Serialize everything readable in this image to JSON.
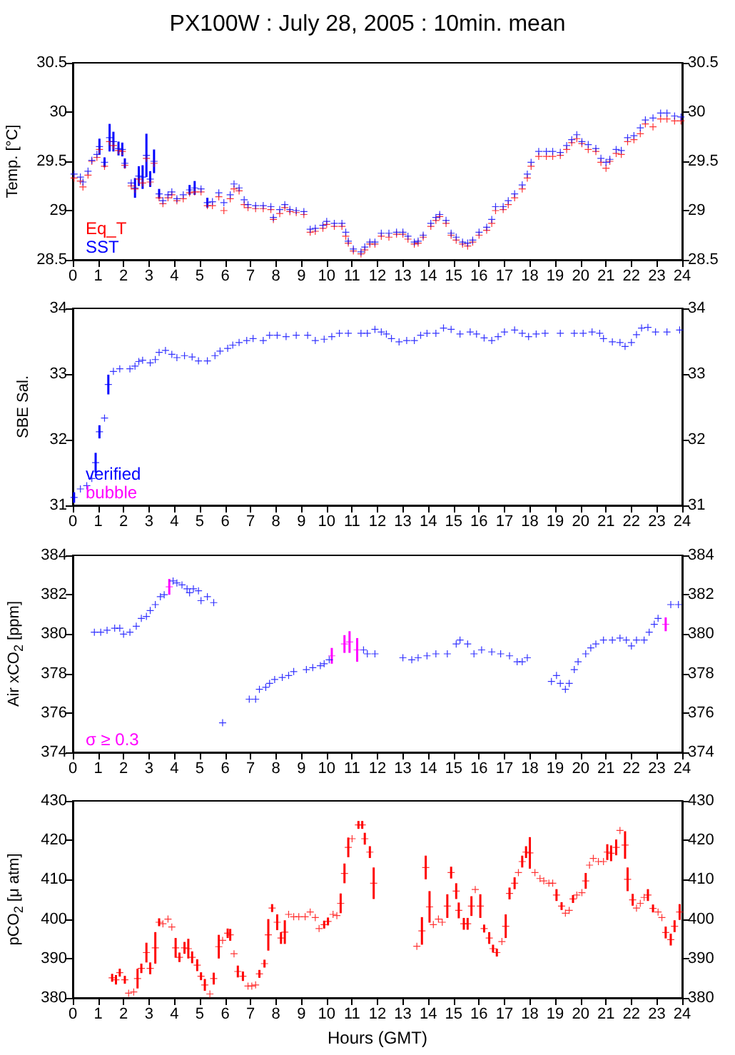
{
  "chart_data": [
    {
      "type": "scatter",
      "title": "PX100W : July 28, 2005 : 10min. mean",
      "ylabel": "Temp. [°C]",
      "marker": "cross",
      "grid": false,
      "legend": "bottom left",
      "xlim": [
        0,
        24
      ],
      "xticks": [
        0,
        1,
        2,
        3,
        4,
        5,
        6,
        7,
        8,
        9,
        10,
        11,
        12,
        13,
        14,
        15,
        16,
        17,
        18,
        19,
        20,
        21,
        22,
        23,
        24
      ],
      "ylim": [
        28.5,
        30.5
      ],
      "yticks": [
        28.5,
        29,
        29.5,
        30,
        30.5
      ],
      "y2lim": [
        28.5,
        30.5
      ],
      "y2ticks": [
        28.5,
        29,
        29.5,
        30,
        30.5
      ],
      "x": [
        0.05,
        0.3,
        0.4,
        0.6,
        0.75,
        0.95,
        1.05,
        1.25,
        1.45,
        1.6,
        1.8,
        1.95,
        2.05,
        2.3,
        2.45,
        2.6,
        2.75,
        2.9,
        3.05,
        3.2,
        3.4,
        3.55,
        3.75,
        3.9,
        4.1,
        4.35,
        4.6,
        4.8,
        5.05,
        5.3,
        5.5,
        5.75,
        5.95,
        6.2,
        6.35,
        6.55,
        6.75,
        6.9,
        7.2,
        7.5,
        7.8,
        7.9,
        8.15,
        8.35,
        8.55,
        8.8,
        9.1,
        9.35,
        9.55,
        9.85,
        10.0,
        10.3,
        10.6,
        10.75,
        10.85,
        11.05,
        11.35,
        11.5,
        11.7,
        11.9,
        12.15,
        12.45,
        12.75,
        13.0,
        13.2,
        13.45,
        13.6,
        13.8,
        14.1,
        14.3,
        14.45,
        14.7,
        14.9,
        15.1,
        15.35,
        15.55,
        15.75,
        16.0,
        16.3,
        16.5,
        16.65,
        16.95,
        17.15,
        17.4,
        17.7,
        17.9,
        18.05,
        18.35,
        18.65,
        18.9,
        19.2,
        19.45,
        19.65,
        19.85,
        20.05,
        20.3,
        20.6,
        20.8,
        21.0,
        21.15,
        21.4,
        21.6,
        21.85,
        22.1,
        22.35,
        22.55,
        22.85,
        23.15,
        23.4,
        23.7,
        23.95
      ],
      "series": [
        {
          "name": "Eq_T",
          "color": "#ff0000",
          "values": [
            29.33,
            29.3,
            29.24,
            29.36,
            29.5,
            29.54,
            29.62,
            29.45,
            29.7,
            29.66,
            29.61,
            29.6,
            29.46,
            29.25,
            29.22,
            29.32,
            29.28,
            29.53,
            29.29,
            29.48,
            29.13,
            29.07,
            29.13,
            29.16,
            29.1,
            29.12,
            29.18,
            29.19,
            29.19,
            29.05,
            29.05,
            29.14,
            29.0,
            29.12,
            29.22,
            29.2,
            29.06,
            29.03,
            29.02,
            29.02,
            29.01,
            28.91,
            28.97,
            29.03,
            28.99,
            28.98,
            28.96,
            28.78,
            28.79,
            28.82,
            28.86,
            28.84,
            28.84,
            28.74,
            28.67,
            28.59,
            28.56,
            28.6,
            28.66,
            28.66,
            28.74,
            28.73,
            28.76,
            28.76,
            28.71,
            28.66,
            28.67,
            28.73,
            28.84,
            28.9,
            28.94,
            28.87,
            28.75,
            28.7,
            28.66,
            28.64,
            28.68,
            28.75,
            28.8,
            28.87,
            29.0,
            29.01,
            29.06,
            29.13,
            29.22,
            29.33,
            29.45,
            29.55,
            29.55,
            29.55,
            29.56,
            29.62,
            29.69,
            29.73,
            29.68,
            29.62,
            29.6,
            29.49,
            29.43,
            29.5,
            29.58,
            29.57,
            29.7,
            29.72,
            29.78,
            29.88,
            29.85,
            29.93,
            29.93,
            29.91,
            29.91
          ]
        },
        {
          "name": "SST",
          "color": "#0000ff",
          "values": [
            29.37,
            29.34,
            29.29,
            29.4,
            29.51,
            29.57,
            29.65,
            29.49,
            29.74,
            29.7,
            29.63,
            29.62,
            29.48,
            29.28,
            29.23,
            29.35,
            29.34,
            29.56,
            29.32,
            29.5,
            29.17,
            29.1,
            29.16,
            29.19,
            29.12,
            29.16,
            29.21,
            29.23,
            29.22,
            29.08,
            29.09,
            29.18,
            29.08,
            29.16,
            29.27,
            29.23,
            29.11,
            29.06,
            29.05,
            29.05,
            29.04,
            28.93,
            29.01,
            29.06,
            29.01,
            29.0,
            28.99,
            28.81,
            28.82,
            28.85,
            28.89,
            28.87,
            28.87,
            28.78,
            28.69,
            28.61,
            28.58,
            28.63,
            28.68,
            28.68,
            28.77,
            28.77,
            28.78,
            28.78,
            28.74,
            28.68,
            28.69,
            28.75,
            28.87,
            28.93,
            28.96,
            28.9,
            28.77,
            28.73,
            28.68,
            28.67,
            28.7,
            28.78,
            28.83,
            28.91,
            29.04,
            29.04,
            29.1,
            29.17,
            29.26,
            29.37,
            29.49,
            29.6,
            29.6,
            29.6,
            29.59,
            29.66,
            29.72,
            29.77,
            29.7,
            29.67,
            29.63,
            29.53,
            29.49,
            29.52,
            29.62,
            29.61,
            29.74,
            29.76,
            29.84,
            29.92,
            29.94,
            29.99,
            29.99,
            29.96,
            29.95
          ],
          "errors": [
            null,
            null,
            null,
            null,
            null,
            null,
            0.08,
            0.05,
            0.14,
            0.1,
            0.07,
            0.07,
            0.05,
            null,
            0.1,
            0.1,
            0.12,
            0.22,
            0.08,
            0.12,
            0.05,
            null,
            null,
            null,
            null,
            null,
            0.05,
            0.07,
            null,
            0.05,
            null,
            null,
            null,
            null,
            null,
            null,
            null,
            null,
            null,
            null,
            null,
            null,
            null,
            null,
            null,
            null,
            null,
            null,
            null,
            null,
            null,
            null,
            null,
            null,
            null,
            null,
            null,
            null,
            null,
            null,
            null,
            null,
            null,
            null,
            null,
            null,
            null,
            null,
            null,
            null,
            null,
            null,
            null,
            null,
            null,
            null,
            null,
            null,
            null,
            null,
            null,
            null,
            null,
            null,
            null,
            null,
            null,
            null,
            null,
            null,
            null,
            null,
            null,
            null,
            null,
            null,
            null,
            null,
            null,
            null,
            null,
            null,
            null,
            null,
            null,
            null,
            null,
            null,
            null,
            null,
            null
          ]
        }
      ]
    },
    {
      "type": "scatter",
      "ylabel": "SBE Sal.",
      "marker": "cross",
      "grid": false,
      "legend": "bottom left",
      "xlim": [
        0,
        24
      ],
      "xticks": [
        0,
        1,
        2,
        3,
        4,
        5,
        6,
        7,
        8,
        9,
        10,
        11,
        12,
        13,
        14,
        15,
        16,
        17,
        18,
        19,
        20,
        21,
        22,
        23,
        24
      ],
      "ylim": [
        31,
        34
      ],
      "yticks": [
        31,
        32,
        33,
        34
      ],
      "y2lim": [
        31,
        34
      ],
      "y2ticks": [
        31,
        32,
        33,
        34
      ],
      "series": [
        {
          "name": "verified",
          "color": "#0000ff",
          "x": [
            0.05,
            0.3,
            0.55,
            0.75,
            0.9,
            1.05,
            1.25,
            1.4,
            1.6,
            1.85,
            2.25,
            2.45,
            2.6,
            2.75,
            3.05,
            3.25,
            3.4,
            3.65,
            3.9,
            4.1,
            4.4,
            4.7,
            4.95,
            5.3,
            5.6,
            5.8,
            6.1,
            6.3,
            6.55,
            6.85,
            7.1,
            7.5,
            7.75,
            8.05,
            8.4,
            8.8,
            9.25,
            9.55,
            9.9,
            10.2,
            10.5,
            10.85,
            11.35,
            11.6,
            11.9,
            12.15,
            12.35,
            12.55,
            12.85,
            13.15,
            13.45,
            13.7,
            13.95,
            14.3,
            14.6,
            14.9,
            15.25,
            15.65,
            15.9,
            16.2,
            16.5,
            16.75,
            17.0,
            17.4,
            17.7,
            17.95,
            18.25,
            18.6,
            19.2,
            19.75,
            20.1,
            20.45,
            20.75,
            20.9,
            21.25,
            21.55,
            21.75,
            22.0,
            22.2,
            22.4,
            22.65,
            22.95,
            23.4,
            23.9
          ],
          "values": [
            31.12,
            31.25,
            31.3,
            31.41,
            31.65,
            32.12,
            32.33,
            32.84,
            33.04,
            33.08,
            33.08,
            33.12,
            33.19,
            33.21,
            33.17,
            33.22,
            33.33,
            33.36,
            33.3,
            33.25,
            33.28,
            33.26,
            33.2,
            33.2,
            33.28,
            33.35,
            33.39,
            33.44,
            33.48,
            33.51,
            33.54,
            33.51,
            33.59,
            33.59,
            33.57,
            33.59,
            33.59,
            33.51,
            33.53,
            33.57,
            33.62,
            33.62,
            33.62,
            33.62,
            33.68,
            33.64,
            33.61,
            33.54,
            33.49,
            33.51,
            33.51,
            33.59,
            33.62,
            33.62,
            33.7,
            33.68,
            33.61,
            33.64,
            33.61,
            33.55,
            33.51,
            33.57,
            33.64,
            33.67,
            33.62,
            33.57,
            33.61,
            33.62,
            33.62,
            33.62,
            33.62,
            33.64,
            33.62,
            33.54,
            33.49,
            33.48,
            33.42,
            33.48,
            33.6,
            33.7,
            33.71,
            33.64,
            33.64,
            33.67
          ],
          "errors": [
            0.08,
            null,
            null,
            null,
            0.15,
            0.1,
            null,
            0.15,
            null,
            null,
            null,
            null,
            null,
            null,
            null,
            null,
            null,
            null,
            null,
            null,
            null,
            null,
            null,
            null,
            null,
            null,
            null,
            null,
            null,
            null,
            null,
            null,
            null,
            null,
            null,
            null,
            null,
            null,
            null,
            null,
            null,
            null,
            null,
            null,
            null,
            null,
            null,
            null,
            null,
            null,
            null,
            null,
            null,
            null,
            null,
            null,
            null,
            null,
            null,
            null,
            null,
            null,
            null,
            null,
            null,
            null,
            null,
            null,
            null,
            null,
            null,
            null,
            null,
            null,
            null,
            null,
            null,
            null,
            null,
            null,
            null,
            null,
            null,
            null
          ]
        },
        {
          "name": "bubble",
          "color": "#ff00ff"
        }
      ]
    },
    {
      "type": "scatter",
      "ylabel": "Air xCO$_{2}$ [ppm]",
      "marker": "cross",
      "grid": false,
      "legend": "bottom left",
      "xlim": [
        0,
        24
      ],
      "xticks": [
        0,
        1,
        2,
        3,
        4,
        5,
        6,
        7,
        8,
        9,
        10,
        11,
        12,
        13,
        14,
        15,
        16,
        17,
        18,
        19,
        20,
        21,
        22,
        23,
        24
      ],
      "ylim": [
        374,
        384
      ],
      "yticks": [
        374,
        376,
        378,
        380,
        382,
        384
      ],
      "y2lim": [
        374,
        384
      ],
      "y2ticks": [
        374,
        376,
        378,
        380,
        382,
        384
      ],
      "series": [
        {
          "color": "#0000ff",
          "x": [
            0.85,
            1.1,
            1.35,
            1.65,
            1.85,
            2.0,
            2.25,
            2.5,
            2.7,
            2.9,
            3.05,
            3.25,
            3.45,
            3.6,
            3.95,
            4.1,
            4.3,
            4.5,
            4.6,
            4.75,
            4.95,
            5.05,
            5.3,
            5.55,
            5.9,
            6.95,
            7.2,
            7.35,
            7.6,
            7.75,
            7.95,
            8.25,
            8.5,
            8.7,
            9.2,
            9.45,
            9.75,
            9.9,
            10.1,
            11.45,
            11.6,
            11.9,
            13.0,
            13.35,
            13.6,
            13.95,
            14.3,
            14.75,
            15.1,
            15.25,
            15.55,
            15.8,
            16.1,
            16.5,
            16.85,
            17.2,
            17.5,
            17.7,
            17.9,
            18.85,
            19.05,
            19.2,
            19.4,
            19.55,
            19.75,
            19.9,
            20.2,
            20.4,
            20.6,
            20.9,
            21.25,
            21.55,
            21.8,
            22.0,
            22.2,
            22.5,
            22.7,
            22.9,
            23.05,
            23.55,
            23.85
          ],
          "values": [
            380.1,
            380.1,
            380.2,
            380.3,
            380.3,
            380.0,
            380.1,
            380.4,
            380.8,
            380.9,
            381.2,
            381.5,
            381.9,
            382.0,
            382.7,
            382.6,
            382.5,
            382.3,
            382.1,
            382.3,
            382.2,
            381.7,
            381.9,
            381.6,
            375.5,
            376.7,
            376.7,
            377.2,
            377.3,
            377.5,
            377.7,
            377.8,
            377.9,
            378.1,
            378.2,
            378.3,
            378.4,
            378.5,
            378.7,
            379.2,
            379.0,
            379.0,
            378.8,
            378.7,
            378.8,
            378.9,
            379.0,
            379.0,
            379.5,
            379.7,
            379.5,
            379.0,
            379.2,
            379.1,
            379.0,
            378.9,
            378.6,
            378.6,
            378.8,
            377.6,
            377.9,
            377.5,
            377.2,
            377.5,
            378.2,
            378.6,
            379.0,
            379.3,
            379.5,
            379.7,
            379.7,
            379.8,
            379.7,
            379.4,
            379.7,
            379.7,
            380.1,
            380.5,
            380.8,
            381.5,
            381.5
          ]
        },
        {
          "name": "σ ≥ 0.3",
          "color": "#ff00ff",
          "x": [
            3.8,
            10.2,
            10.7,
            10.9,
            11.2,
            23.35
          ],
          "values": [
            382.4,
            378.9,
            379.5,
            379.6,
            379.2,
            380.5
          ],
          "errors": [
            0.4,
            0.4,
            0.45,
            0.55,
            0.6,
            0.35
          ]
        }
      ]
    },
    {
      "type": "scatter",
      "xlabel": "Hours (GMT)",
      "ylabel": "pCO$_{2}$ [μ atm]",
      "marker": "cross",
      "grid": false,
      "xlim": [
        0,
        24
      ],
      "xticks": [
        0,
        1,
        2,
        3,
        4,
        5,
        6,
        7,
        8,
        9,
        10,
        11,
        12,
        13,
        14,
        15,
        16,
        17,
        18,
        19,
        20,
        21,
        22,
        23,
        24
      ],
      "ylim": [
        380,
        430
      ],
      "yticks": [
        380,
        390,
        400,
        410,
        420,
        430
      ],
      "y2lim": [
        380,
        430
      ],
      "y2ticks": [
        380,
        390,
        400,
        410,
        420,
        430
      ],
      "series": [
        {
          "color": "#ff0000",
          "x": [
            1.55,
            1.7,
            1.85,
            2.05,
            2.2,
            2.4,
            2.55,
            2.7,
            2.9,
            3.05,
            3.25,
            3.4,
            3.55,
            3.75,
            3.9,
            4.05,
            4.2,
            4.4,
            4.55,
            4.7,
            4.9,
            5.05,
            5.2,
            5.4,
            5.55,
            5.75,
            5.9,
            6.1,
            6.2,
            6.35,
            6.5,
            6.7,
            6.9,
            7.05,
            7.2,
            7.35,
            7.55,
            7.7,
            7.85,
            8.05,
            8.2,
            8.35,
            8.5,
            8.7,
            8.9,
            9.15,
            9.35,
            9.55,
            9.7,
            9.9,
            10.05,
            10.25,
            10.4,
            10.55,
            10.7,
            10.85,
            11.0,
            11.25,
            11.4,
            11.5,
            11.7,
            11.85,
            13.55,
            13.75,
            13.9,
            14.05,
            14.2,
            14.4,
            14.55,
            14.75,
            14.9,
            15.1,
            15.2,
            15.4,
            15.55,
            15.7,
            15.85,
            16.05,
            16.2,
            16.4,
            16.55,
            16.7,
            16.9,
            17.05,
            17.2,
            17.4,
            17.55,
            17.7,
            17.85,
            18.0,
            18.2,
            18.4,
            18.55,
            18.75,
            18.9,
            19.05,
            19.25,
            19.4,
            19.55,
            19.7,
            19.85,
            20.05,
            20.2,
            20.35,
            20.5,
            20.7,
            20.9,
            21.05,
            21.2,
            21.4,
            21.55,
            21.75,
            21.85,
            22.05,
            22.2,
            22.35,
            22.5,
            22.65,
            22.85,
            23.05,
            23.2,
            23.35,
            23.55,
            23.7,
            23.9
          ],
          "values": [
            385.1,
            384.6,
            386.4,
            384.6,
            381.2,
            381.5,
            384.9,
            387.5,
            391.5,
            387.5,
            392.7,
            399.2,
            398.8,
            400.0,
            398.0,
            392.7,
            390.3,
            392.7,
            392.5,
            390.3,
            388.3,
            385.5,
            383.3,
            381.0,
            384.9,
            393.0,
            394.6,
            396.4,
            396.0,
            391.2,
            386.7,
            385.5,
            383.0,
            383.0,
            383.3,
            386.1,
            388.7,
            396.0,
            402.8,
            399.2,
            395.2,
            396.7,
            401.2,
            400.6,
            400.6,
            400.6,
            401.8,
            400.4,
            397.6,
            398.6,
            399.4,
            401.2,
            400.9,
            404.0,
            411.6,
            418.2,
            420.4,
            423.9,
            423.9,
            420.4,
            417.0,
            409.1,
            393.1,
            397.0,
            413.1,
            403.1,
            398.6,
            400.0,
            399.2,
            403.3,
            411.8,
            407.1,
            402.2,
            398.8,
            398.8,
            403.3,
            407.5,
            403.3,
            397.6,
            395.2,
            392.5,
            391.5,
            394.3,
            398.2,
            406.5,
            409.1,
            411.8,
            414.6,
            417.0,
            416.8,
            411.8,
            410.3,
            409.7,
            409.1,
            409.1,
            406.1,
            403.3,
            401.5,
            402.2,
            405.1,
            406.1,
            406.7,
            409.7,
            413.7,
            415.4,
            414.6,
            414.6,
            417.0,
            416.7,
            418.2,
            422.5,
            418.8,
            410.1,
            404.9,
            402.8,
            404.0,
            405.5,
            406.1,
            402.7,
            401.8,
            400.4,
            396.6,
            394.8,
            398.2,
            401.8
          ],
          "errors": [
            1,
            1.2,
            1,
            1,
            null,
            null,
            2.5,
            1.2,
            2.5,
            1.5,
            4,
            1,
            null,
            null,
            null,
            2.5,
            1.2,
            1.5,
            2.5,
            1.5,
            1.5,
            1,
            1.5,
            null,
            1.5,
            3,
            null,
            1.2,
            1.5,
            null,
            1.5,
            1.2,
            null,
            null,
            null,
            1,
            1,
            4,
            1,
            2,
            1.5,
            3,
            null,
            null,
            null,
            null,
            null,
            null,
            null,
            1,
            1,
            null,
            null,
            2.5,
            2.5,
            2.5,
            null,
            1,
            1,
            1.5,
            1.5,
            4,
            null,
            3.5,
            3,
            4,
            null,
            null,
            null,
            3,
            1.5,
            2,
            2,
            1.5,
            1.5,
            2.5,
            null,
            3,
            1,
            1.5,
            1,
            1,
            null,
            3,
            1.5,
            1.5,
            null,
            1.5,
            1.5,
            4,
            null,
            null,
            null,
            null,
            null,
            1.5,
            1,
            null,
            null,
            1,
            null,
            null,
            2,
            null,
            null,
            null,
            null,
            2,
            2,
            2,
            null,
            3.5,
            3,
            1.5,
            null,
            null,
            null,
            1.5,
            1,
            null,
            null,
            1.5,
            1.5,
            1.5,
            2
          ]
        }
      ]
    }
  ]
}
